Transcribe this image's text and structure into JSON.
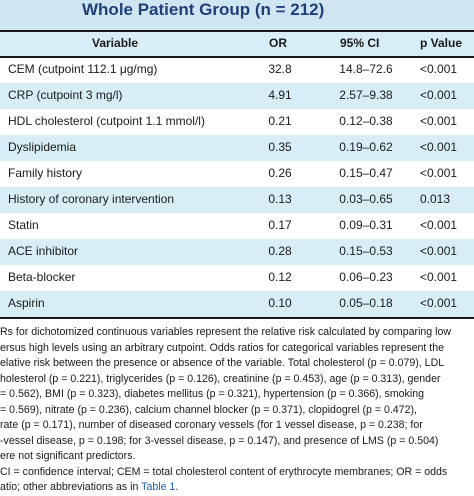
{
  "title": "Whole Patient Group (n = 212)",
  "columns": [
    "Variable",
    "OR",
    "95% CI",
    "p Value"
  ],
  "rows": [
    {
      "variable": "CEM (cutpoint 112.1 μg/mg)",
      "or": "32.8",
      "ci": "14.8–72.6",
      "p": "<0.001"
    },
    {
      "variable": "CRP (cutpoint 3 mg/l)",
      "or": "4.91",
      "ci": "2.57–9.38",
      "p": "<0.001"
    },
    {
      "variable": "HDL cholesterol (cutpoint 1.1 mmol/l)",
      "or": "0.21",
      "ci": "0.12–0.38",
      "p": "<0.001"
    },
    {
      "variable": "Dyslipidemia",
      "or": "0.35",
      "ci": "0.19–0.62",
      "p": "<0.001"
    },
    {
      "variable": "Family history",
      "or": "0.26",
      "ci": "0.15–0.47",
      "p": "<0.001"
    },
    {
      "variable": "History of coronary intervention",
      "or": "0.13",
      "ci": "0.03–0.65",
      "p": "0.013"
    },
    {
      "variable": "Statin",
      "or": "0.17",
      "ci": "0.09–0.31",
      "p": "<0.001"
    },
    {
      "variable": "ACE inhibitor",
      "or": "0.28",
      "ci": "0.15–0.53",
      "p": "<0.001"
    },
    {
      "variable": "Beta-blocker",
      "or": "0.12",
      "ci": "0.06–0.23",
      "p": "<0.001"
    },
    {
      "variable": "Aspirin",
      "or": "0.10",
      "ci": "0.05–0.18",
      "p": "<0.001"
    }
  ],
  "footnote_lines": [
    "Rs for dichotomized continuous variables represent the relative risk calculated by comparing low",
    "ersus high levels using an arbitrary cutpoint. Odds ratios for categorical variables represent the",
    "elative risk between the presence or absence of the variable. Total cholesterol (p = 0.079), LDL",
    "holesterol (p = 0.221), triglycerides (p = 0.126), creatinine (p = 0.453), age (p = 0.313), gender",
    "= 0.562), BMI (p = 0.323), diabetes mellitus (p = 0.321), hypertension (p = 0.366), smoking",
    "= 0.569), nitrate (p = 0.236), calcium channel blocker (p = 0.371), clopidogrel (p = 0.472),",
    "rate (p = 0.171), number of diseased coronary vessels (for 1 vessel disease, p = 0.238; for",
    "-vessel disease, p = 0.198; for 3-vessel disease, p = 0.147), and presence of LMS (p = 0.504)",
    "ere not significant predictors.",
    "CI = confidence interval; CEM = total cholesterol content of erythrocyte membranes; OR = odds",
    "atio; other abbreviations as in "
  ],
  "footnote_link": "Table 1",
  "footnote_link_suffix": "."
}
